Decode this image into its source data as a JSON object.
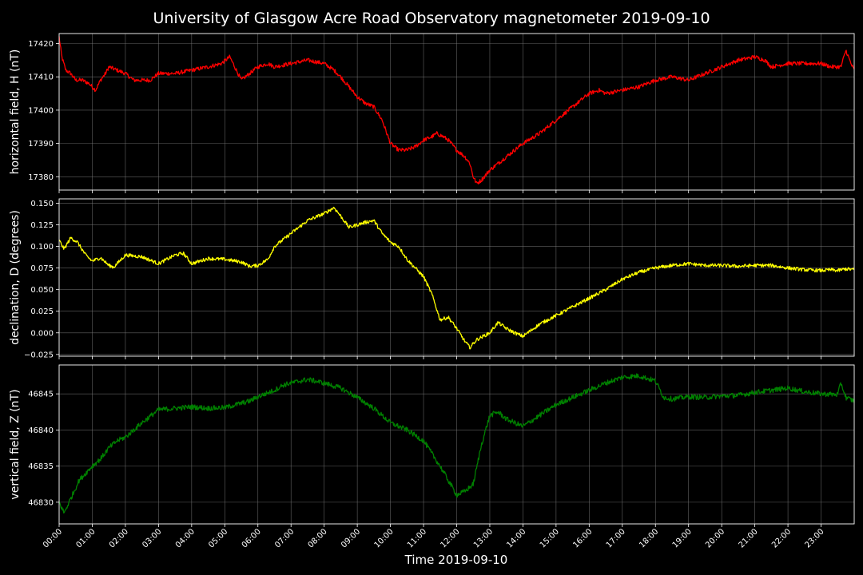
{
  "chart_data": {
    "type": "line",
    "title": "University of Glasgow Acre Road Observatory magnetometer 2019-09-10",
    "xlabel": "Time 2019-09-10",
    "x_unit": "hour of day",
    "xlim": [
      0,
      24
    ],
    "x_ticks": [
      0,
      1,
      2,
      3,
      4,
      5,
      6,
      7,
      8,
      9,
      10,
      11,
      12,
      13,
      14,
      15,
      16,
      17,
      18,
      19,
      20,
      21,
      22,
      23
    ],
    "x_tick_labels": [
      "00:00",
      "01:00",
      "02:00",
      "03:00",
      "04:00",
      "05:00",
      "06:00",
      "07:00",
      "08:00",
      "09:00",
      "10:00",
      "11:00",
      "12:00",
      "13:00",
      "14:00",
      "15:00",
      "16:00",
      "17:00",
      "18:00",
      "19:00",
      "20:00",
      "21:00",
      "22:00",
      "23:00"
    ],
    "grid": true,
    "panels": [
      {
        "ylabel": "horizontal field, H (nT)",
        "color": "#ff0000",
        "ylim": [
          17376,
          17423
        ],
        "y_ticks": [
          17380,
          17390,
          17400,
          17410,
          17420
        ],
        "y_tick_labels": [
          "17380",
          "17390",
          "17400",
          "17410",
          "17420"
        ],
        "noise": 0.6,
        "series": {
          "x": [
            0,
            0.08,
            0.2,
            0.35,
            0.5,
            0.7,
            0.9,
            1.0,
            1.1,
            1.25,
            1.4,
            1.5,
            1.75,
            2.0,
            2.25,
            2.5,
            2.75,
            3.0,
            3.5,
            4.0,
            4.5,
            4.9,
            5.15,
            5.3,
            5.5,
            5.75,
            6.0,
            6.3,
            6.5,
            7.0,
            7.5,
            8.0,
            8.3,
            8.5,
            8.75,
            9.0,
            9.25,
            9.5,
            9.75,
            10.0,
            10.25,
            10.5,
            10.75,
            11.0,
            11.25,
            11.4,
            11.6,
            11.75,
            12.0,
            12.25,
            12.4,
            12.5,
            12.6,
            12.75,
            13.0,
            13.5,
            14.0,
            14.5,
            15.0,
            15.5,
            16.0,
            16.3,
            16.5,
            17.0,
            17.5,
            18.0,
            18.5,
            19.0,
            19.5,
            20.0,
            20.5,
            21.0,
            21.3,
            21.5,
            22.0,
            22.5,
            23.0,
            23.3,
            23.5,
            23.6,
            23.75,
            23.9,
            24.0
          ],
          "y": [
            17422,
            17416,
            17412,
            17411,
            17409,
            17409,
            17408,
            17407,
            17406,
            17409,
            17411,
            17413,
            17412,
            17411,
            17409,
            17409,
            17409,
            17411,
            17411,
            17412,
            17413,
            17414,
            17416,
            17413,
            17409,
            17411,
            17413,
            17414,
            17413,
            17414,
            17415,
            17414,
            17412,
            17410,
            17407,
            17404,
            17402,
            17401,
            17397,
            17390,
            17388,
            17388,
            17389,
            17391,
            17392,
            17393,
            17392,
            17391,
            17388,
            17386,
            17384,
            17380,
            17378,
            17379,
            17382,
            17386,
            17390,
            17393,
            17397,
            17401,
            17405,
            17406,
            17405,
            17406,
            17407,
            17409,
            17410,
            17409,
            17411,
            17413,
            17415,
            17416,
            17415,
            17413,
            17414,
            17414,
            17414,
            17413,
            17413,
            17413,
            17418,
            17414,
            17412
          ]
        }
      },
      {
        "ylabel": "declination, D (degrees)",
        "color": "#ffff00",
        "ylim": [
          -0.027,
          0.155
        ],
        "y_ticks": [
          -0.025,
          0.0,
          0.025,
          0.05,
          0.075,
          0.1,
          0.125,
          0.15
        ],
        "y_tick_labels": [
          "−0.025",
          "0.000",
          "0.025",
          "0.050",
          "0.075",
          "0.100",
          "0.125",
          "0.150"
        ],
        "noise": 0.002,
        "series": {
          "x": [
            0,
            0.15,
            0.35,
            0.55,
            0.8,
            1.0,
            1.25,
            1.5,
            1.65,
            2.0,
            2.5,
            3.0,
            3.5,
            3.75,
            4.0,
            4.5,
            5.0,
            5.5,
            5.75,
            6.0,
            6.3,
            6.5,
            7.0,
            7.5,
            8.0,
            8.3,
            8.5,
            8.75,
            9.0,
            9.25,
            9.5,
            9.75,
            10.0,
            10.25,
            10.5,
            11.0,
            11.25,
            11.5,
            11.75,
            12.0,
            12.25,
            12.4,
            12.6,
            13.0,
            13.25,
            13.5,
            13.75,
            14.0,
            14.5,
            15.0,
            15.5,
            16.0,
            16.5,
            17.0,
            17.5,
            18.0,
            18.5,
            19.0,
            19.5,
            20.0,
            20.5,
            21.0,
            21.5,
            22.0,
            22.5,
            23.0,
            23.3,
            23.5,
            23.75,
            24.0
          ],
          "y": [
            0.107,
            0.097,
            0.11,
            0.105,
            0.09,
            0.083,
            0.087,
            0.078,
            0.076,
            0.09,
            0.088,
            0.08,
            0.09,
            0.092,
            0.08,
            0.086,
            0.085,
            0.082,
            0.077,
            0.078,
            0.085,
            0.1,
            0.115,
            0.13,
            0.138,
            0.145,
            0.135,
            0.122,
            0.125,
            0.128,
            0.13,
            0.115,
            0.105,
            0.1,
            0.085,
            0.065,
            0.045,
            0.015,
            0.018,
            0.005,
            -0.01,
            -0.017,
            -0.008,
            0.0,
            0.012,
            0.005,
            0.0,
            -0.004,
            0.01,
            0.02,
            0.03,
            0.04,
            0.05,
            0.062,
            0.07,
            0.075,
            0.078,
            0.08,
            0.078,
            0.078,
            0.077,
            0.078,
            0.078,
            0.075,
            0.073,
            0.072,
            0.073,
            0.072,
            0.074,
            0.073
          ]
        }
      },
      {
        "ylabel": "vertical field, Z (nT)",
        "color": "#008000",
        "ylim": [
          46827,
          46849
        ],
        "y_ticks": [
          46830,
          46835,
          46840,
          46845
        ],
        "y_tick_labels": [
          "46830",
          "46835",
          "46840",
          "46845"
        ],
        "noise": 0.35,
        "series": {
          "x": [
            0,
            0.15,
            0.3,
            0.6,
            0.9,
            1.0,
            1.25,
            1.5,
            1.75,
            2.0,
            2.5,
            3.0,
            3.5,
            4.0,
            4.5,
            5.0,
            5.5,
            5.75,
            6.0,
            6.5,
            6.75,
            7.0,
            7.5,
            8.0,
            8.5,
            9.0,
            9.5,
            10.0,
            10.5,
            11.0,
            11.5,
            11.75,
            12.0,
            12.25,
            12.5,
            12.75,
            13.0,
            13.25,
            13.5,
            14.0,
            14.5,
            15.0,
            15.5,
            16.0,
            16.5,
            17.0,
            17.5,
            18.0,
            18.25,
            18.5,
            19.0,
            19.5,
            20.0,
            20.5,
            21.0,
            21.5,
            22.0,
            22.5,
            23.0,
            23.5,
            23.6,
            23.75,
            24.0
          ],
          "y": [
            46830,
            46828.5,
            46830,
            46833,
            46834.5,
            46835,
            46836,
            46837.5,
            46838.5,
            46839,
            46841,
            46842.8,
            46843,
            46843.2,
            46843,
            46843.1,
            46843.7,
            46844,
            46844.6,
            46845.5,
            46846.2,
            46846.5,
            46847,
            46846.5,
            46845.8,
            46844.5,
            46843,
            46841,
            46840,
            46838.5,
            46835,
            46833,
            46831,
            46831.5,
            46832.5,
            46838,
            46842,
            46842.5,
            46841.5,
            46840.5,
            46842,
            46843.5,
            46844.5,
            46845.5,
            46846.5,
            46847.3,
            46847.5,
            46846.8,
            46844.5,
            46844.3,
            46844.6,
            46844.5,
            46844.7,
            46844.8,
            46845.2,
            46845.5,
            46845.8,
            46845.3,
            46845,
            46844.9,
            46846.5,
            46844.5,
            46844
          ]
        }
      }
    ]
  }
}
